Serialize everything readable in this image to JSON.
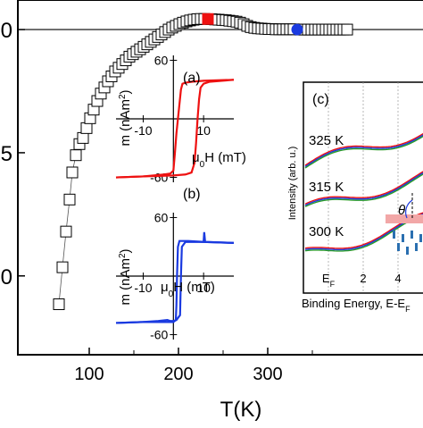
{
  "chart_data": [
    {
      "id": "main",
      "type": "scatter",
      "xlabel": "T(K)",
      "ylabel": "",
      "xlim": [
        20,
        474
      ],
      "ylim": [
        -1.32,
        0.12
      ],
      "x_ticks": [
        100,
        200,
        300
      ],
      "y_ticks": [
        {
          "value": 0,
          "label": "0"
        },
        {
          "value": -0.5,
          "label": ".5"
        },
        {
          "value": -1.0,
          "label": "0"
        }
      ],
      "reference_line": 0,
      "series": [
        {
          "marker": "open-square",
          "color": "#000000",
          "points": [
            [
              66,
              -1.115
            ],
            [
              70,
              -0.965
            ],
            [
              74,
              -0.82
            ],
            [
              78,
              -0.69
            ],
            [
              81,
              -0.58
            ],
            [
              85,
              -0.51
            ],
            [
              89,
              -0.465
            ],
            [
              93,
              -0.44
            ],
            [
              97,
              -0.4
            ],
            [
              101,
              -0.36
            ],
            [
              105,
              -0.325
            ],
            [
              109,
              -0.29
            ],
            [
              113,
              -0.26
            ],
            [
              117,
              -0.235
            ],
            [
              121,
              -0.21
            ],
            [
              125,
              -0.19
            ],
            [
              129,
              -0.17
            ],
            [
              133,
              -0.155
            ],
            [
              137,
              -0.14
            ],
            [
              141,
              -0.125
            ],
            [
              145,
              -0.11
            ],
            [
              149,
              -0.1
            ],
            [
              153,
              -0.09
            ],
            [
              157,
              -0.08
            ],
            [
              161,
              -0.07
            ],
            [
              165,
              -0.06
            ],
            [
              169,
              -0.05
            ],
            [
              173,
              -0.04
            ],
            [
              177,
              -0.03
            ],
            [
              181,
              -0.02
            ],
            [
              185,
              -0.01
            ],
            [
              189,
              0.0
            ],
            [
              193,
              0.008
            ],
            [
              197,
              0.015
            ],
            [
              201,
              0.022
            ],
            [
              205,
              0.028
            ],
            [
              209,
              0.033
            ],
            [
              213,
              0.037
            ],
            [
              217,
              0.04
            ],
            [
              221,
              0.042
            ],
            [
              225,
              0.043
            ],
            [
              229,
              0.043
            ],
            [
              237,
              0.042
            ],
            [
              241,
              0.041
            ],
            [
              245,
              0.04
            ],
            [
              249,
              0.039
            ],
            [
              253,
              0.038
            ],
            [
              257,
              0.036
            ],
            [
              261,
              0.034
            ],
            [
              265,
              0.032
            ],
            [
              269,
              0.028
            ],
            [
              273,
              0.022
            ],
            [
              277,
              0.015
            ],
            [
              281,
              0.01
            ],
            [
              285,
              0.007
            ],
            [
              289,
              0.005
            ],
            [
              293,
              0.004
            ],
            [
              297,
              0.003
            ],
            [
              301,
              0.002
            ],
            [
              305,
              0.002
            ],
            [
              309,
              0.001
            ],
            [
              313,
              0.001
            ],
            [
              317,
              0.001
            ],
            [
              321,
              0.001
            ],
            [
              325,
              0.001
            ],
            [
              329,
              0.001
            ],
            [
              337,
              0.0
            ],
            [
              341,
              0.0
            ],
            [
              345,
              0.0
            ],
            [
              349,
              0.0
            ],
            [
              353,
              0.0
            ],
            [
              357,
              0.0
            ],
            [
              361,
              0.0
            ],
            [
              365,
              0.0
            ],
            [
              369,
              0.0
            ],
            [
              373,
              0.0
            ],
            [
              377,
              0.0
            ],
            [
              381,
              0.0
            ],
            [
              385,
              0.0
            ],
            [
              389,
              0.0
            ]
          ]
        }
      ],
      "highlights": [
        {
          "x": 233,
          "y": 0.043,
          "marker": "filled-square",
          "color": "#ee1111"
        },
        {
          "x": 333,
          "y": 0.0,
          "marker": "filled-circle",
          "color": "#1a3ae0"
        }
      ]
    },
    {
      "id": "inset-a",
      "type": "line",
      "panel_label": "(a)",
      "xlabel": "μ0H (mT)",
      "ylabel": "m (nAm²)",
      "xlim": [
        -19,
        20
      ],
      "ylim": [
        -65,
        65
      ],
      "x_ticks": [
        {
          "value": -10,
          "label": "-10"
        },
        {
          "value": 10,
          "label": "10"
        }
      ],
      "y_ticks": [
        {
          "value": 60,
          "label": "60"
        },
        {
          "value": -60,
          "label": "-60"
        }
      ],
      "color": "#ee1111",
      "descending": [
        [
          20,
          40
        ],
        [
          10,
          39
        ],
        [
          6,
          38
        ],
        [
          4,
          37
        ],
        [
          3,
          36
        ],
        [
          2.5,
          30
        ],
        [
          2,
          15
        ],
        [
          1.5,
          0
        ],
        [
          1,
          -15
        ],
        [
          0.5,
          -35
        ],
        [
          0,
          -53
        ],
        [
          -1,
          -56
        ],
        [
          -3,
          -57
        ],
        [
          -10,
          -59
        ],
        [
          -19,
          -60
        ]
      ],
      "ascending": [
        [
          -19,
          -60
        ],
        [
          -10,
          -59
        ],
        [
          0,
          -58
        ],
        [
          4,
          -57
        ],
        [
          6,
          -55
        ],
        [
          7,
          -45
        ],
        [
          7.5,
          -25
        ],
        [
          8,
          0
        ],
        [
          8.5,
          20
        ],
        [
          9,
          32
        ],
        [
          10,
          36
        ],
        [
          12,
          38
        ],
        [
          20,
          40
        ]
      ]
    },
    {
      "id": "inset-b",
      "type": "line",
      "panel_label": "(b)",
      "xlabel": "μ0H (mT)",
      "ylabel": "m (nAm²)",
      "xlim": [
        -19,
        20
      ],
      "ylim": [
        -65,
        65
      ],
      "x_ticks": [
        {
          "value": -10,
          "label": "-10"
        },
        {
          "value": 10,
          "label": "10"
        }
      ],
      "y_ticks": [
        {
          "value": 60,
          "label": "60"
        },
        {
          "value": -60,
          "label": "-60"
        }
      ],
      "color": "#1a3ae0",
      "descending": [
        [
          20,
          34
        ],
        [
          10,
          35
        ],
        [
          5,
          36
        ],
        [
          2,
          36
        ],
        [
          1.5,
          30
        ],
        [
          1.2,
          0
        ],
        [
          1,
          -30
        ],
        [
          0.8,
          -45
        ],
        [
          0,
          -47
        ],
        [
          -10,
          -47
        ],
        [
          -19,
          -48
        ]
      ],
      "ascending": [
        [
          -19,
          -48
        ],
        [
          -10,
          -47
        ],
        [
          -5,
          -46
        ],
        [
          -2,
          -45
        ],
        [
          -1,
          -46
        ],
        [
          0,
          -46
        ],
        [
          1,
          -45
        ],
        [
          2.2,
          -40
        ],
        [
          2.5,
          0
        ],
        [
          2.8,
          30
        ],
        [
          4,
          35
        ],
        [
          10,
          35
        ],
        [
          10.2,
          45
        ],
        [
          10.5,
          35
        ],
        [
          20,
          34
        ]
      ]
    },
    {
      "id": "inset-c",
      "type": "line",
      "panel_label": "(c)",
      "xlabel": "Binding Energy, E-EF",
      "ylabel": "Intensity (arb. u.)",
      "x_tick_labels": [
        "EF",
        "2",
        "4"
      ],
      "curve_labels": [
        "325 K",
        "315 K",
        "300 K"
      ],
      "theta_label": "θ"
    }
  ]
}
